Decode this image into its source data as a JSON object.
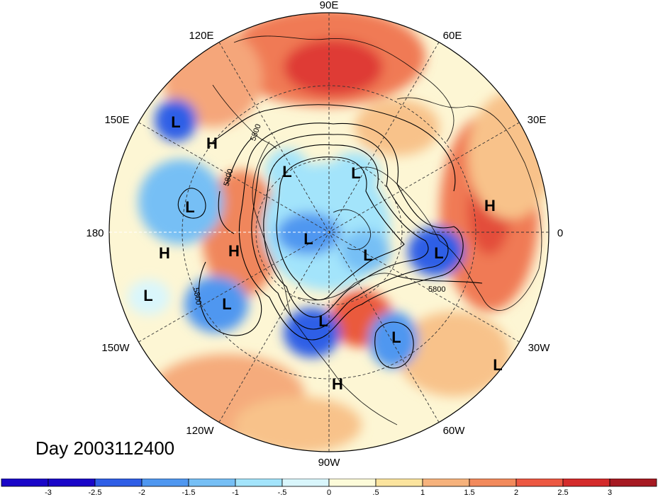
{
  "title": "Day 2003112400",
  "longitudes": {
    "e90": "90E",
    "e60": "60E",
    "e30": "30E",
    "zero": "0",
    "w30": "30W",
    "w60": "60W",
    "w90": "90W",
    "w120": "120W",
    "w150": "150W",
    "d180": "180",
    "e150": "150E",
    "e120": "120E"
  },
  "contour_labels": [
    "5800",
    "5800",
    "5800",
    "5800"
  ],
  "pressure_centers": {
    "low_label": "L",
    "high_label": "H"
  },
  "colorbar": {
    "ticks": [
      "-3",
      "-2.5",
      "-2",
      "-1.5",
      "-1",
      "-.5",
      "0",
      ".5",
      "1",
      "1.5",
      "2",
      "2.5",
      "3"
    ],
    "colors": [
      "#1a06c8",
      "#2f5ee6",
      "#4f97f0",
      "#76bff5",
      "#a3e4fb",
      "#d9f6fc",
      "#fdfbd9",
      "#fbe49e",
      "#f6b27c",
      "#f28a5c",
      "#ec5842",
      "#d42b2b",
      "#a61a22"
    ]
  },
  "colors": {
    "negative_strong": "#1a06c8",
    "positive_strong": "#a61a22"
  }
}
